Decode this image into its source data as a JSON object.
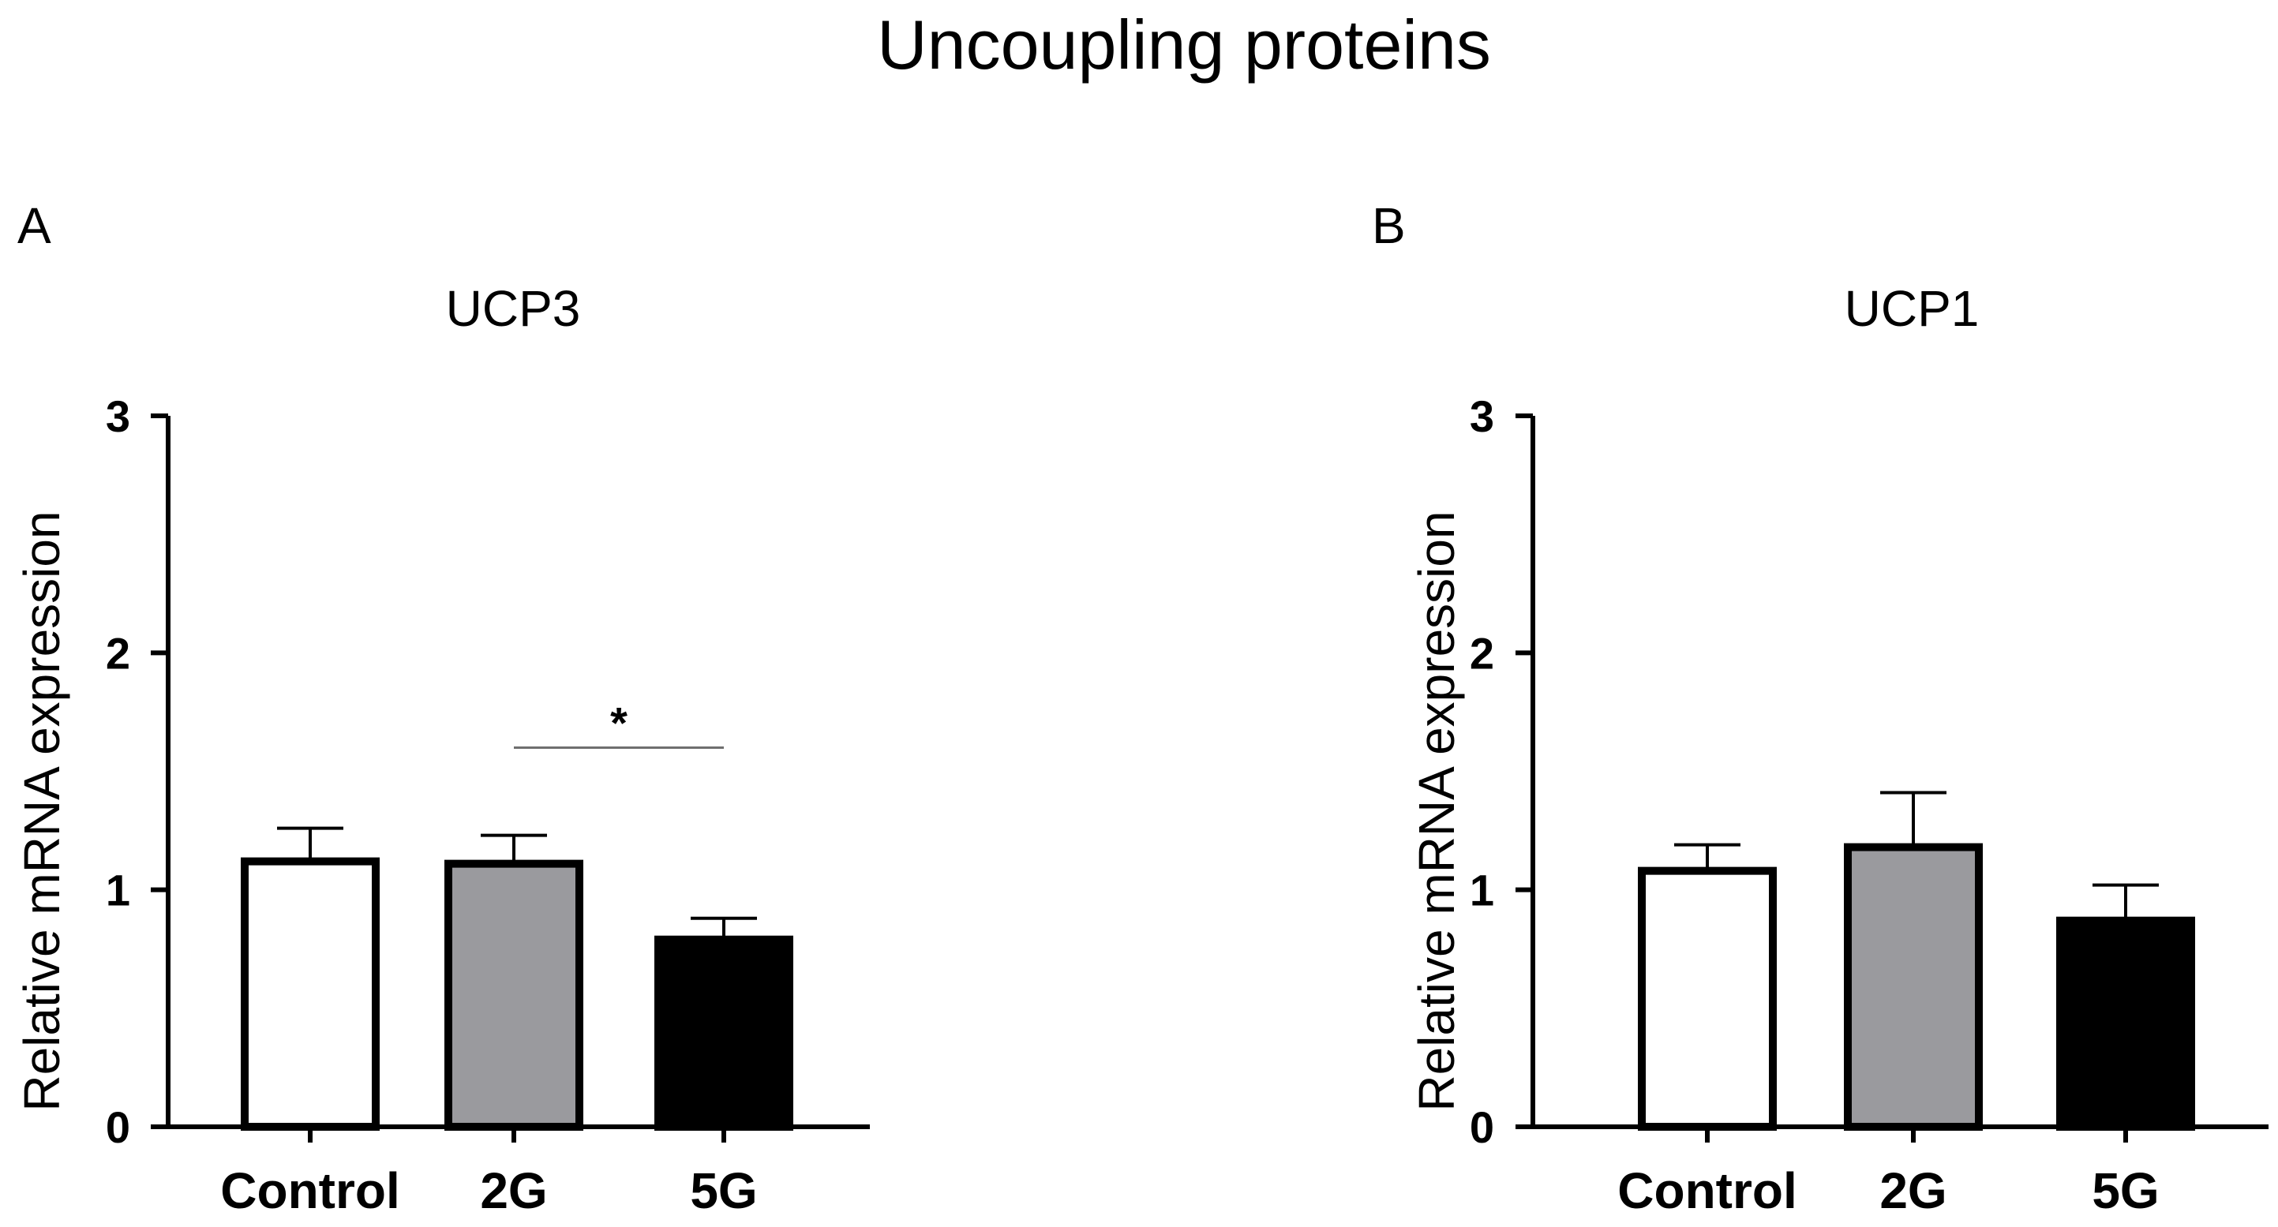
{
  "figure": {
    "title": "Uncoupling proteins"
  },
  "chart_data": [
    {
      "type": "bar",
      "panel": "A",
      "title": "UCP3",
      "ylabel": "Relative mRNA expression",
      "xlabel": "",
      "ylim": [
        0,
        3
      ],
      "yticks": [
        "0",
        "1",
        "2",
        "3"
      ],
      "categories": [
        "Control",
        "2G",
        "5G"
      ],
      "values": [
        1.12,
        1.11,
        0.79
      ],
      "errors": [
        0.14,
        0.12,
        0.09
      ],
      "colors": [
        "#ffffff",
        "#9a9a9e",
        "#000000"
      ],
      "significance": {
        "from": "2G",
        "to": "5G",
        "label": "*",
        "y": 1.6
      }
    },
    {
      "type": "bar",
      "panel": "B",
      "title": "UCP1",
      "ylabel": "Relative mRNA expression",
      "xlabel": "",
      "ylim": [
        0,
        3
      ],
      "yticks": [
        "0",
        "1",
        "2",
        "3"
      ],
      "categories": [
        "Control",
        "2G",
        "5G"
      ],
      "values": [
        1.08,
        1.18,
        0.87
      ],
      "errors": [
        0.11,
        0.23,
        0.15
      ],
      "colors": [
        "#ffffff",
        "#9a9a9e",
        "#000000"
      ]
    }
  ]
}
